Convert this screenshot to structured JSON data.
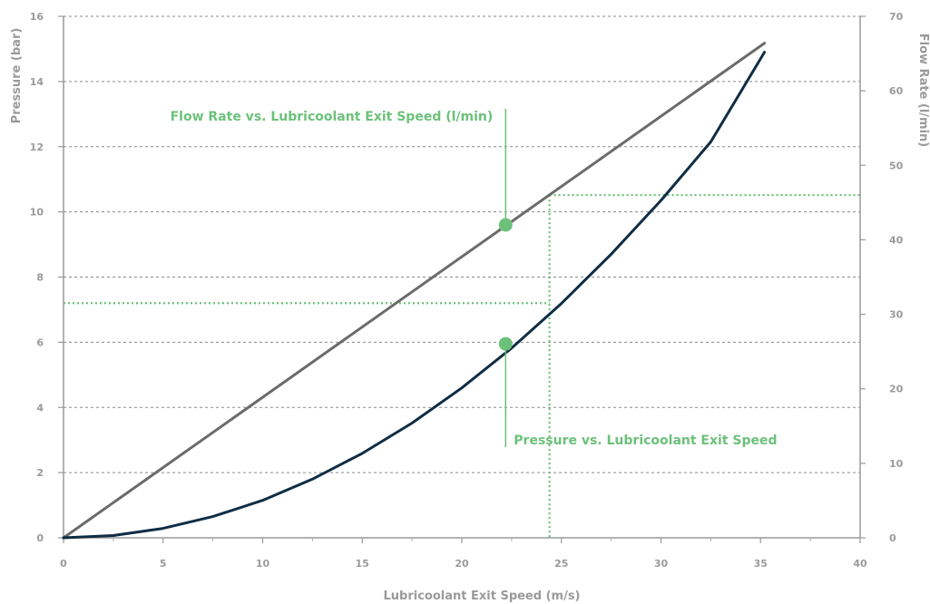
{
  "chart_data": {
    "type": "line",
    "xlabel": "Lubricoolant Exit Speed (m/s)",
    "ylabel_left": "Pressure (bar)",
    "ylabel_right": "Flow Rate (l/min)",
    "xlim": [
      0,
      40
    ],
    "ylim_left": [
      0,
      16
    ],
    "ylim_right": [
      0,
      70
    ],
    "x_ticks": [
      "0",
      "5",
      "10",
      "15",
      "20",
      "25",
      "30",
      "35",
      "40"
    ],
    "y_left_ticks": [
      "0",
      "2",
      "4",
      "6",
      "8",
      "10",
      "12",
      "14",
      "16"
    ],
    "y_right_ticks": [
      "0",
      "10",
      "20",
      "30",
      "40",
      "50",
      "60",
      "70"
    ],
    "grid": "horizontal dashed",
    "series": [
      {
        "name": "Flow Rate vs. Lubricoolant Exit Speed (l/min)",
        "axis": "right",
        "color": "#6b6b6b",
        "x": [
          0,
          35.2
        ],
        "y": [
          0,
          66.4
        ]
      },
      {
        "name": "Pressure vs. Lubricoolant Exit Speed",
        "axis": "left",
        "color": "#0f2d44",
        "x": [
          0,
          2.5,
          5,
          7.5,
          10,
          12.5,
          15,
          17.5,
          20,
          22.5,
          25,
          27.5,
          30,
          32.5,
          35.2
        ],
        "y": [
          0,
          0.07,
          0.29,
          0.65,
          1.15,
          1.8,
          2.59,
          3.52,
          4.6,
          5.82,
          7.19,
          8.7,
          10.35,
          12.15,
          14.9
        ]
      }
    ],
    "annotations": [
      {
        "text": "Flow Rate vs. Lubricoolant Exit Speed (l/min)",
        "x": 22.2,
        "y": 9.6,
        "axis": "left",
        "color": "#6cc17a"
      },
      {
        "text": "Pressure vs. Lubricoolant Exit Speed",
        "x": 22.2,
        "y": 5.95,
        "axis": "left",
        "color": "#6cc17a"
      }
    ],
    "reference_lines": {
      "x": 24.4,
      "pressure": 7.2,
      "flow_rate": 46,
      "color": "#6cc17a"
    }
  }
}
